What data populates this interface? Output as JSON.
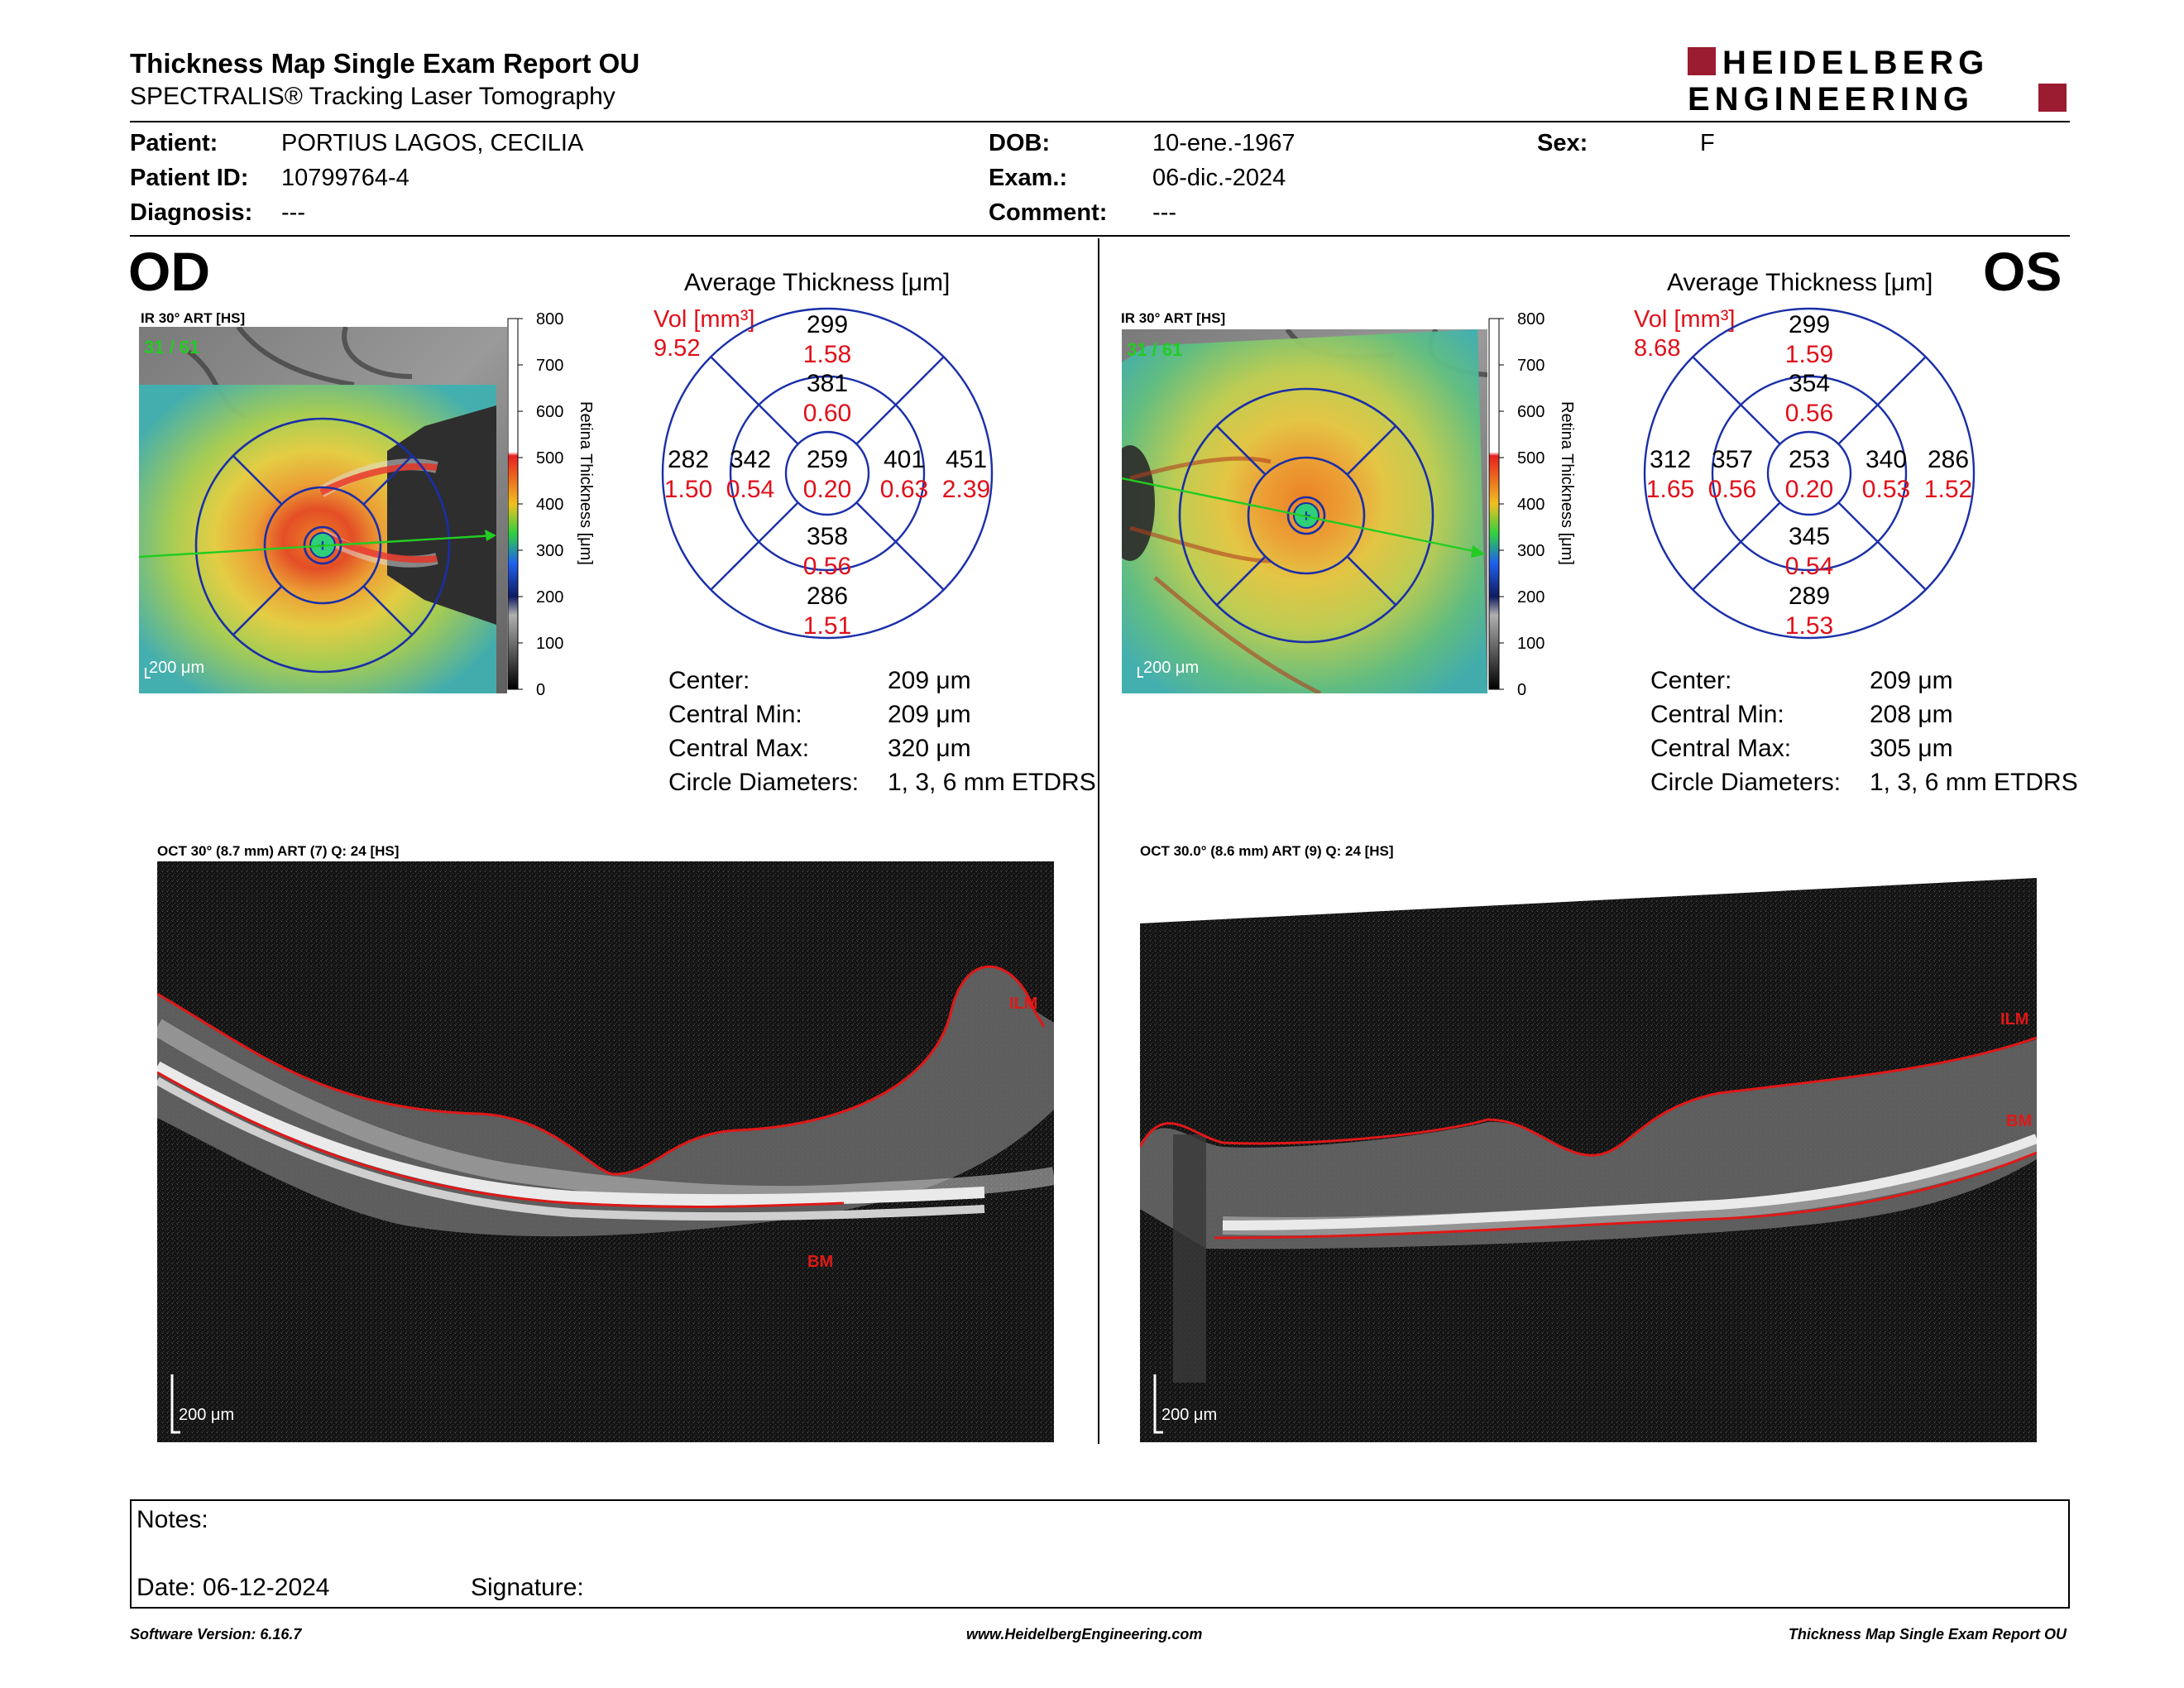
{
  "header": {
    "title": "Thickness Map Single Exam Report OU",
    "subtitle": "SPECTRALIS® Tracking Laser Tomography",
    "logo_line1": "HEIDELBERG",
    "logo_line2": "ENGINEERING",
    "logo_color": "#9b1b30"
  },
  "patient": {
    "patient_label": "Patient:",
    "patient_value": "PORTIUS LAGOS, CECILIA",
    "id_label": "Patient ID:",
    "id_value": "10799764-4",
    "diagnosis_label": "Diagnosis:",
    "diagnosis_value": "---",
    "dob_label": "DOB:",
    "dob_value": "10-ene.-1967",
    "exam_label": "Exam.:",
    "exam_value": "06-dic.-2024",
    "comment_label": "Comment:",
    "comment_value": "---",
    "sex_label": "Sex:",
    "sex_value": "F"
  },
  "od": {
    "eye": "OD",
    "ir_title": "IR 30° ART [HS]",
    "frame": "31 / 61",
    "scale": "200 μm",
    "colorbar_ticks": [
      "800",
      "700",
      "600",
      "500",
      "400",
      "300",
      "200",
      "100",
      "0"
    ],
    "colorbar_label": "Retina Thickness [μm]",
    "avg_title": "Average Thickness [μm]",
    "vol_label": "Vol [mm³]",
    "vol_value": "9.52",
    "sectors": {
      "outer_top": [
        "299",
        "1.58"
      ],
      "inner_top": [
        "381",
        "0.60"
      ],
      "outer_left": [
        "282",
        "1.50"
      ],
      "inner_left": [
        "342",
        "0.54"
      ],
      "center": [
        "259",
        "0.20"
      ],
      "inner_right": [
        "401",
        "0.63"
      ],
      "outer_right": [
        "451",
        "2.39"
      ],
      "inner_bottom": [
        "358",
        "0.56"
      ],
      "outer_bottom": [
        "286",
        "1.51"
      ]
    },
    "stats": [
      {
        "label": "Center:",
        "value": "209 μm"
      },
      {
        "label": "Central Min:",
        "value": "209 μm"
      },
      {
        "label": "Central Max:",
        "value": "320 μm"
      },
      {
        "label": "Circle Diameters:",
        "value": "1, 3, 6 mm ETDRS"
      }
    ],
    "oct_title": "OCT 30° (8.7 mm) ART (7) Q: 24 [HS]",
    "oct_scale": "200 μm",
    "ilm_label": "ILM",
    "bm_label": "BM"
  },
  "os": {
    "eye": "OS",
    "ir_title": "IR 30° ART [HS]",
    "frame": "31 / 61",
    "scale": "200 μm",
    "colorbar_ticks": [
      "800",
      "700",
      "600",
      "500",
      "400",
      "300",
      "200",
      "100",
      "0"
    ],
    "colorbar_label": "Retina Thickness [μm]",
    "avg_title": "Average Thickness [μm]",
    "vol_label": "Vol [mm³]",
    "vol_value": "8.68",
    "sectors": {
      "outer_top": [
        "299",
        "1.59"
      ],
      "inner_top": [
        "354",
        "0.56"
      ],
      "outer_left": [
        "312",
        "1.65"
      ],
      "inner_left": [
        "357",
        "0.56"
      ],
      "center": [
        "253",
        "0.20"
      ],
      "inner_right": [
        "340",
        "0.53"
      ],
      "outer_right": [
        "286",
        "1.52"
      ],
      "inner_bottom": [
        "345",
        "0.54"
      ],
      "outer_bottom": [
        "289",
        "1.53"
      ]
    },
    "stats": [
      {
        "label": "Center:",
        "value": "209 μm"
      },
      {
        "label": "Central Min:",
        "value": "208 μm"
      },
      {
        "label": "Central Max:",
        "value": "305 μm"
      },
      {
        "label": "Circle Diameters:",
        "value": "1, 3, 6 mm ETDRS"
      }
    ],
    "oct_title": "OCT 30.0° (8.6 mm) ART (9) Q: 24 [HS]",
    "oct_scale": "200 μm",
    "ilm_label": "ILM",
    "bm_label": "BM"
  },
  "notes": {
    "notes_label": "Notes:",
    "date_label": "Date: 06-12-2024",
    "signature_label": "Signature:"
  },
  "footer": {
    "software": "Software Version: 6.16.7",
    "website": "www.HeidelbergEngineering.com",
    "report": "Thickness Map Single Exam Report OU"
  },
  "colors": {
    "volume_red": "#e0101a",
    "grid_blue": "#1a2fa8",
    "scan_green": "#22cc22",
    "segmentation_red": "#e01818"
  }
}
